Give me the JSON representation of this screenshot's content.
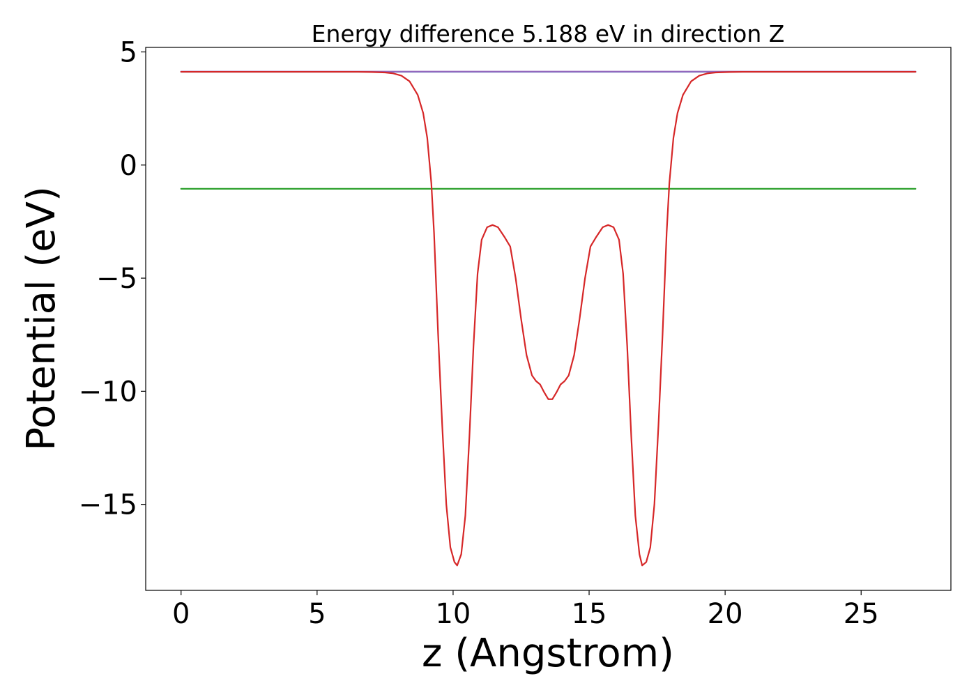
{
  "chart_data": {
    "type": "line",
    "title": "Energy difference 5.188 eV in direction Z",
    "xlabel": "z (Angstrom)",
    "ylabel": "Potential (eV)",
    "xlim": [
      -1.3,
      28.3
    ],
    "ylim": [
      -18.8,
      5.2
    ],
    "x_ticks": [
      0,
      5,
      10,
      15,
      20,
      25
    ],
    "x_tick_labels": [
      "0",
      "5",
      "10",
      "15",
      "20",
      "25"
    ],
    "y_ticks": [
      5,
      0,
      -5,
      -10,
      -15
    ],
    "y_tick_labels": [
      "5",
      "0",
      "−5",
      "−10",
      "−15"
    ],
    "grid": false,
    "legend": "none",
    "series": [
      {
        "color": "#1f77b4",
        "points": [
          [
            0,
            4.12
          ],
          [
            27,
            4.12
          ]
        ]
      },
      {
        "color": "#2ca02c",
        "points": [
          [
            0,
            -1.05
          ],
          [
            27,
            -1.05
          ]
        ]
      },
      {
        "color": "#9467bd",
        "points": [
          [
            0,
            4.13
          ],
          [
            27,
            4.13
          ]
        ]
      },
      {
        "color": "#d62728",
        "points": [
          [
            0,
            4.12
          ],
          [
            6.5,
            4.12
          ],
          [
            7.0,
            4.11
          ],
          [
            7.5,
            4.09
          ],
          [
            7.8,
            4.05
          ],
          [
            8.1,
            3.95
          ],
          [
            8.4,
            3.7
          ],
          [
            8.7,
            3.1
          ],
          [
            8.9,
            2.3
          ],
          [
            9.05,
            1.2
          ],
          [
            9.2,
            -0.8
          ],
          [
            9.3,
            -3.0
          ],
          [
            9.45,
            -7.5
          ],
          [
            9.6,
            -11.5
          ],
          [
            9.75,
            -15.0
          ],
          [
            9.9,
            -16.9
          ],
          [
            10.05,
            -17.55
          ],
          [
            10.15,
            -17.7
          ],
          [
            10.3,
            -17.2
          ],
          [
            10.45,
            -15.5
          ],
          [
            10.6,
            -12.0
          ],
          [
            10.75,
            -8.0
          ],
          [
            10.9,
            -4.8
          ],
          [
            11.05,
            -3.3
          ],
          [
            11.25,
            -2.75
          ],
          [
            11.45,
            -2.65
          ],
          [
            11.65,
            -2.75
          ],
          [
            11.9,
            -3.2
          ],
          [
            12.1,
            -3.6
          ],
          [
            12.3,
            -5.0
          ],
          [
            12.5,
            -6.8
          ],
          [
            12.7,
            -8.4
          ],
          [
            12.9,
            -9.3
          ],
          [
            13.05,
            -9.55
          ],
          [
            13.2,
            -9.7
          ],
          [
            13.35,
            -10.05
          ],
          [
            13.5,
            -10.35
          ],
          [
            13.65,
            -10.35
          ],
          [
            13.8,
            -10.05
          ],
          [
            13.95,
            -9.7
          ],
          [
            14.1,
            -9.55
          ],
          [
            14.25,
            -9.3
          ],
          [
            14.45,
            -8.4
          ],
          [
            14.65,
            -6.8
          ],
          [
            14.85,
            -5.0
          ],
          [
            15.05,
            -3.6
          ],
          [
            15.25,
            -3.2
          ],
          [
            15.5,
            -2.75
          ],
          [
            15.7,
            -2.65
          ],
          [
            15.9,
            -2.75
          ],
          [
            16.1,
            -3.3
          ],
          [
            16.25,
            -4.8
          ],
          [
            16.4,
            -8.0
          ],
          [
            16.55,
            -12.0
          ],
          [
            16.7,
            -15.5
          ],
          [
            16.85,
            -17.2
          ],
          [
            16.95,
            -17.7
          ],
          [
            17.1,
            -17.55
          ],
          [
            17.25,
            -16.9
          ],
          [
            17.4,
            -15.0
          ],
          [
            17.55,
            -11.5
          ],
          [
            17.7,
            -7.5
          ],
          [
            17.85,
            -3.0
          ],
          [
            17.95,
            -0.8
          ],
          [
            18.1,
            1.2
          ],
          [
            18.25,
            2.3
          ],
          [
            18.45,
            3.1
          ],
          [
            18.75,
            3.7
          ],
          [
            19.05,
            3.95
          ],
          [
            19.35,
            4.05
          ],
          [
            19.65,
            4.09
          ],
          [
            20.15,
            4.11
          ],
          [
            20.65,
            4.12
          ],
          [
            27,
            4.12
          ]
        ]
      }
    ]
  }
}
